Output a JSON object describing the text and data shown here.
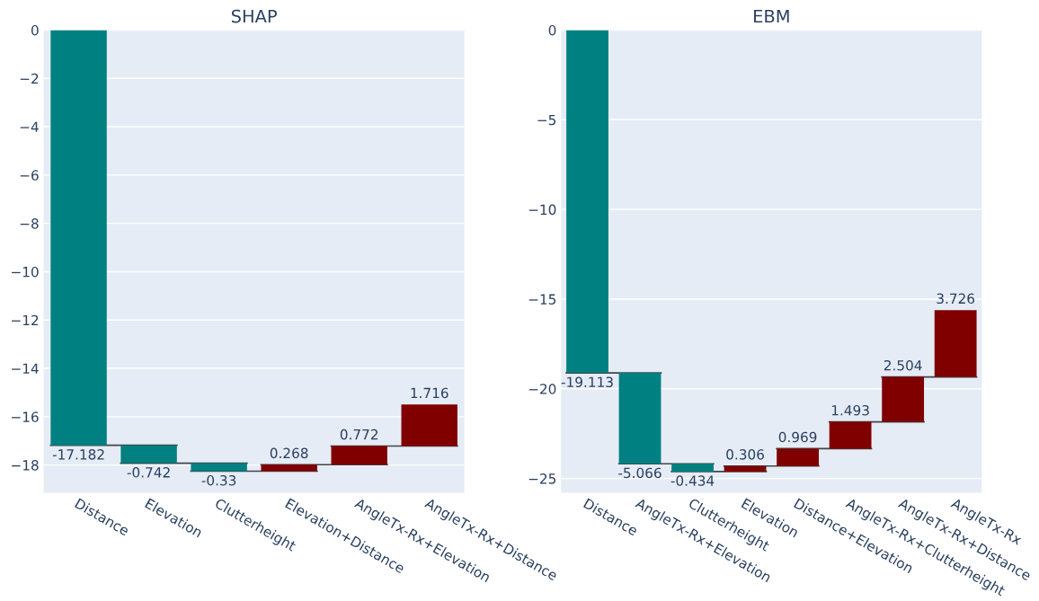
{
  "chart_data": [
    {
      "type": "bar",
      "title": "SHAP",
      "categories": [
        "Distance",
        "Elevation",
        "Clutterheight",
        "Elevation+Distance",
        "AngleTx-Rx+Elevation",
        "AngleTx-Rx+Distance"
      ],
      "values": [
        -17.182,
        -0.742,
        -0.33,
        0.268,
        0.772,
        1.716
      ],
      "base": [
        0,
        -17.182,
        -17.924,
        -18.254,
        -17.986,
        -17.214
      ],
      "colors": [
        "#008080",
        "#008080",
        "#008080",
        "#800000",
        "#800000",
        "#800000"
      ],
      "ylim": [
        -19.15,
        0
      ],
      "yticks": [
        0,
        -2,
        -4,
        -6,
        -8,
        -10,
        -12,
        -14,
        -16,
        -18
      ],
      "grid": "y",
      "data_labels": true
    },
    {
      "type": "bar",
      "title": "EBM",
      "categories": [
        "Distance",
        "AngleTx-Rx+Elevation",
        "Clutterheight",
        "Elevation",
        "Distance+Elevation",
        "AngleTx-Rx+Clutterheight",
        "AngleTx-Rx+Distance",
        "AngleTx-Rx"
      ],
      "values": [
        -19.113,
        -5.066,
        -0.434,
        0.306,
        0.969,
        1.493,
        2.504,
        3.726
      ],
      "base": [
        0,
        -19.113,
        -24.179,
        -24.613,
        -24.307,
        -23.338,
        -21.845,
        -19.341
      ],
      "colors": [
        "#008080",
        "#008080",
        "#008080",
        "#800000",
        "#800000",
        "#800000",
        "#800000",
        "#800000"
      ],
      "ylim": [
        -25.8,
        0
      ],
      "yticks": [
        0,
        -5,
        -10,
        -15,
        -20,
        -25
      ],
      "grid": "y",
      "data_labels": true
    }
  ]
}
